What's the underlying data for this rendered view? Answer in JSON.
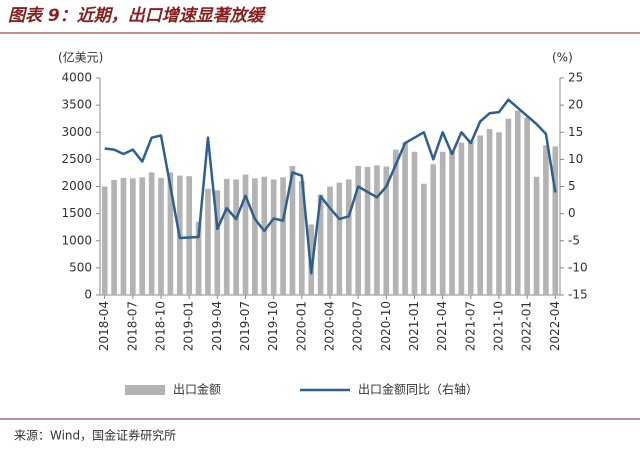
{
  "chart_data": {
    "type": "combo",
    "title": "图表 9：近期，出口增速显著放缓",
    "ylabel": "(亿美元)",
    "y2label": "(%)",
    "source": "来源：Wind，国金证券研究所",
    "categories": [
      "2018-04",
      null,
      null,
      "2018-07",
      null,
      null,
      "2018-10",
      null,
      null,
      "2019-01",
      null,
      null,
      "2019-04",
      null,
      null,
      "2019-07",
      null,
      null,
      "2019-10",
      null,
      null,
      "2020-01",
      null,
      null,
      "2020-04",
      null,
      null,
      "2020-07",
      null,
      null,
      "2020-10",
      null,
      null,
      "2021-01",
      null,
      null,
      "2021-04",
      null,
      null,
      "2021-07",
      null,
      null,
      "2021-10",
      null,
      null,
      "2022-01",
      null,
      null,
      "2022-04"
    ],
    "series": [
      {
        "name": "出口金额",
        "type": "bar",
        "color": "#b3b3b3",
        "values": [
          2000,
          2120,
          2160,
          2150,
          2170,
          2260,
          2160,
          2260,
          2200,
          2190,
          1350,
          1960,
          1930,
          2140,
          2130,
          2220,
          2150,
          2180,
          2130,
          2170,
          2380,
          2100,
          1300,
          1850,
          2000,
          2070,
          2130,
          2380,
          2360,
          2390,
          2370,
          2680,
          2820,
          2640,
          2050,
          2410,
          2640,
          2640,
          2810,
          2830,
          2940,
          3060,
          3000,
          3250,
          3400,
          3270,
          2180,
          2760,
          2740
        ]
      },
      {
        "name": "出口金额同比（右轴）",
        "type": "line",
        "axis": "y2",
        "color": "#2f5f8f",
        "values": [
          12,
          11.8,
          11,
          11.8,
          9.6,
          14,
          14.4,
          5,
          -4.5,
          -4.4,
          -4.3,
          14,
          -2.8,
          1,
          -1,
          3.3,
          -1,
          -3.2,
          -0.9,
          -1.3,
          7.6,
          7,
          -11,
          3.2,
          1,
          -1,
          -0.5,
          5,
          4,
          3,
          5,
          9,
          13,
          14,
          15,
          10,
          15,
          11,
          15,
          13,
          17,
          18.5,
          18.7,
          21,
          19.5,
          18,
          16.5,
          14.7,
          3.9
        ]
      }
    ],
    "ylim": [
      0,
      4000
    ],
    "yticks": [
      0,
      500,
      1000,
      1500,
      2000,
      2500,
      3000,
      3500,
      4000
    ],
    "y2lim": [
      -15,
      25
    ],
    "y2ticks": [
      -15,
      -10,
      -5,
      0,
      5,
      10,
      15,
      20,
      25
    ]
  }
}
